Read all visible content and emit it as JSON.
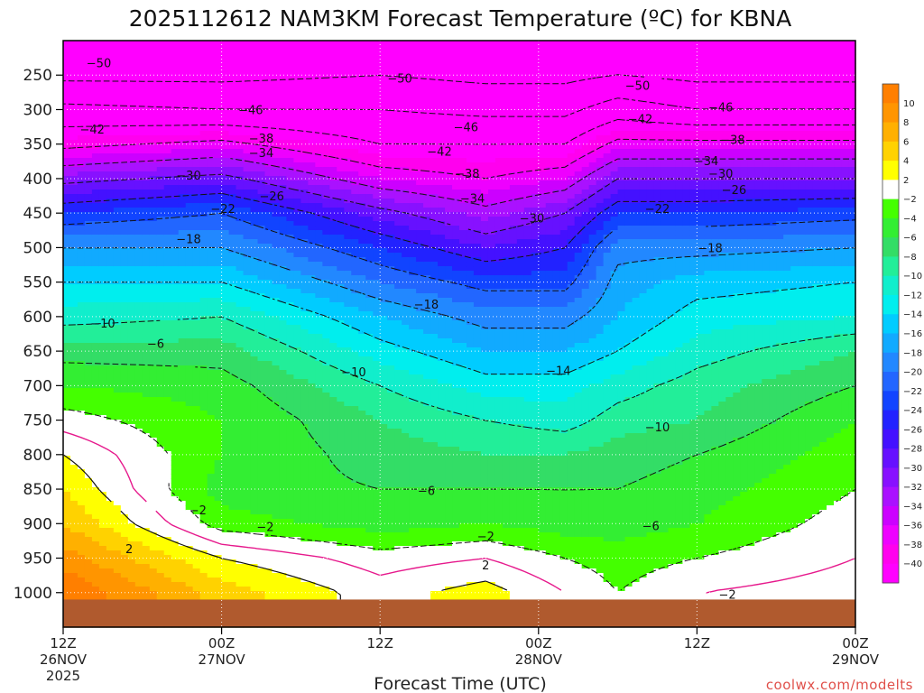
{
  "chart_data": {
    "type": "heatmap",
    "title": "2025112612 NAM3KM Forecast Temperature (ºC) for KBNA",
    "xlabel": "Forecast Time (UTC)",
    "ylabel": "",
    "y_ticks": [
      250,
      300,
      350,
      400,
      450,
      500,
      550,
      600,
      650,
      700,
      750,
      800,
      850,
      900,
      950,
      1000
    ],
    "y_range_hpa": [
      200,
      1050
    ],
    "x_range_hours": [
      0,
      60
    ],
    "x_ticks": [
      {
        "hour": 0,
        "lines": [
          "12Z",
          "26NOV",
          "2025"
        ]
      },
      {
        "hour": 12,
        "lines": [
          "00Z",
          "27NOV"
        ]
      },
      {
        "hour": 24,
        "lines": [
          "12Z"
        ]
      },
      {
        "hour": 36,
        "lines": [
          "00Z",
          "28NOV"
        ]
      },
      {
        "hour": 48,
        "lines": [
          "12Z"
        ]
      },
      {
        "hour": 60,
        "lines": [
          "00Z",
          "29NOV"
        ]
      }
    ],
    "grid": true,
    "colorbar": {
      "placement": "right",
      "labels": [
        "10",
        "8",
        "6",
        "4",
        "2",
        "−2",
        "−4",
        "−6",
        "−8",
        "−10",
        "−12",
        "−14",
        "−16",
        "−18",
        "−20",
        "−22",
        "−24",
        "−26",
        "−28",
        "−30",
        "−32",
        "−34",
        "−36",
        "−38",
        "−40"
      ],
      "colors": [
        "#ff7f00",
        "#ff9500",
        "#ffb000",
        "#ffd200",
        "#ffff00",
        "#ffffff",
        "#44ff00",
        "#33ee33",
        "#33dd66",
        "#22ee99",
        "#11eecc",
        "#00eeee",
        "#00ccff",
        "#11aaff",
        "#2288ff",
        "#2266ff",
        "#1144ff",
        "#2222ff",
        "#4411ff",
        "#6611ff",
        "#8811ff",
        "#aa11ff",
        "#cc00ff",
        "#ee00ff",
        "#ff00ee",
        "#ff00ff"
      ]
    },
    "profiles": [
      {
        "hour": 0,
        "pressure": [
          200,
          250,
          300,
          350,
          400,
          450,
          500,
          550,
          600,
          650,
          700,
          750,
          800,
          850,
          900,
          950,
          1000,
          1050
        ],
        "temp": [
          -56,
          -51,
          -45,
          -39,
          -31,
          -24,
          -18,
          -14,
          -11,
          -7,
          -4,
          -1,
          2,
          4,
          6,
          9,
          12,
          12
        ]
      },
      {
        "hour": 12,
        "pressure": [
          200,
          250,
          300,
          350,
          400,
          450,
          500,
          550,
          600,
          650,
          700,
          750,
          800,
          850,
          900,
          950,
          1000,
          1050
        ],
        "temp": [
          -55,
          -51,
          -46,
          -37,
          -29,
          -22,
          -18,
          -14,
          -10,
          -7,
          -5,
          -4,
          -4,
          -5,
          -3,
          2,
          5,
          5
        ]
      },
      {
        "hour": 24,
        "pressure": [
          200,
          250,
          300,
          350,
          400,
          450,
          500,
          550,
          600,
          650,
          700,
          750,
          800,
          850,
          900,
          950,
          1000,
          1050
        ],
        "temp": [
          -55,
          -50,
          -46,
          -42,
          -36,
          -29,
          -24,
          -20,
          -16,
          -13,
          -10,
          -8,
          -7,
          -6,
          -5,
          -1,
          1,
          1
        ]
      },
      {
        "hour": 32,
        "pressure": [
          200,
          250,
          300,
          350,
          400,
          450,
          500,
          550,
          600,
          650,
          700,
          750,
          800,
          850,
          900,
          950,
          1000,
          1050
        ],
        "temp": [
          -54,
          -51,
          -47,
          -42,
          -38,
          -33,
          -28,
          -23,
          -19,
          -16,
          -13,
          -10,
          -8,
          -6,
          -4,
          0,
          3,
          3
        ]
      },
      {
        "hour": 38,
        "pressure": [
          200,
          250,
          300,
          350,
          400,
          450,
          500,
          550,
          600,
          650,
          700,
          750,
          800,
          850,
          900,
          950,
          1000,
          1050
        ],
        "temp": [
          -54,
          -51,
          -47,
          -42,
          -36,
          -30,
          -26,
          -23,
          -19,
          -16,
          -13,
          -11,
          -8,
          -6,
          -5,
          -2,
          0,
          0
        ]
      },
      {
        "hour": 42,
        "pressure": [
          200,
          250,
          300,
          350,
          400,
          450,
          500,
          550,
          600,
          650,
          700,
          750,
          800,
          850,
          900,
          950,
          1000,
          1050
        ],
        "temp": [
          -54,
          -50,
          -44,
          -37,
          -30,
          -24,
          -19,
          -17,
          -16,
          -14,
          -11,
          -9,
          -7,
          -6,
          -5,
          -3,
          -2,
          -2
        ]
      },
      {
        "hour": 48,
        "pressure": [
          200,
          250,
          300,
          350,
          400,
          450,
          500,
          550,
          600,
          650,
          700,
          750,
          800,
          850,
          900,
          950,
          1000,
          1050
        ],
        "temp": [
          -54,
          -51,
          -46,
          -37,
          -30,
          -24,
          -19,
          -15,
          -13,
          -11,
          -9,
          -8,
          -6,
          -5,
          -4,
          -2,
          0,
          0
        ]
      },
      {
        "hour": 60,
        "pressure": [
          200,
          250,
          300,
          350,
          400,
          450,
          500,
          550,
          600,
          650,
          700,
          750,
          800,
          850,
          900,
          950,
          1000,
          1050
        ],
        "temp": [
          -55,
          -51,
          -46,
          -37,
          -30,
          -23,
          -18,
          -14,
          -12,
          -8,
          -6,
          -4,
          -3,
          -2,
          -1,
          0,
          1,
          1
        ]
      }
    ],
    "contour_labels": [
      {
        "text": "−50",
        "hour": 2.7,
        "pressure": 232
      },
      {
        "text": "−50",
        "hour": 25.5,
        "pressure": 254
      },
      {
        "text": "−50",
        "hour": 43.5,
        "pressure": 265
      },
      {
        "text": "−46",
        "hour": 14.2,
        "pressure": 300
      },
      {
        "text": "−46",
        "hour": 30.5,
        "pressure": 325
      },
      {
        "text": "−46",
        "hour": 49.8,
        "pressure": 296
      },
      {
        "text": "−42",
        "hour": 2.2,
        "pressure": 328
      },
      {
        "text": "−42",
        "hour": 28.5,
        "pressure": 360
      },
      {
        "text": "−42",
        "hour": 43.7,
        "pressure": 313
      },
      {
        "text": "−38",
        "hour": 15.0,
        "pressure": 341
      },
      {
        "text": "−38",
        "hour": 30.6,
        "pressure": 392
      },
      {
        "text": "−38",
        "hour": 50.7,
        "pressure": 343
      },
      {
        "text": "−34",
        "hour": 15.0,
        "pressure": 362
      },
      {
        "text": "−34",
        "hour": 31.0,
        "pressure": 428
      },
      {
        "text": "−34",
        "hour": 48.7,
        "pressure": 374
      },
      {
        "text": "−30",
        "hour": 9.5,
        "pressure": 395
      },
      {
        "text": "−30",
        "hour": 35.5,
        "pressure": 457
      },
      {
        "text": "−30",
        "hour": 49.8,
        "pressure": 392
      },
      {
        "text": "−26",
        "hour": 15.8,
        "pressure": 425
      },
      {
        "text": "−26",
        "hour": 50.8,
        "pressure": 416
      },
      {
        "text": "−22",
        "hour": 12.1,
        "pressure": 443
      },
      {
        "text": "−22",
        "hour": 45.0,
        "pressure": 443
      },
      {
        "text": "−18",
        "hour": 9.5,
        "pressure": 487
      },
      {
        "text": "−18",
        "hour": 27.5,
        "pressure": 582
      },
      {
        "text": "−18",
        "hour": 49.0,
        "pressure": 500
      },
      {
        "text": "−14",
        "hour": 37.5,
        "pressure": 678
      },
      {
        "text": "−10",
        "hour": 3.0,
        "pressure": 609
      },
      {
        "text": "−10",
        "hour": 22.0,
        "pressure": 680
      },
      {
        "text": "−10",
        "hour": 45.0,
        "pressure": 760
      },
      {
        "text": "−6",
        "hour": 7.0,
        "pressure": 639
      },
      {
        "text": "−6",
        "hour": 27.5,
        "pressure": 852
      },
      {
        "text": "−6",
        "hour": 44.5,
        "pressure": 903
      },
      {
        "text": "−2",
        "hour": 10.2,
        "pressure": 880
      },
      {
        "text": "−2",
        "hour": 15.3,
        "pressure": 904
      },
      {
        "text": "2",
        "hour": 5.0,
        "pressure": 936
      },
      {
        "text": "−2",
        "hour": 32.0,
        "pressure": 918
      },
      {
        "text": "2",
        "hour": 32.0,
        "pressure": 960
      },
      {
        "text": "−2",
        "hour": 50.3,
        "pressure": 1002
      }
    ],
    "credit": "coolwx.com/modelts"
  }
}
